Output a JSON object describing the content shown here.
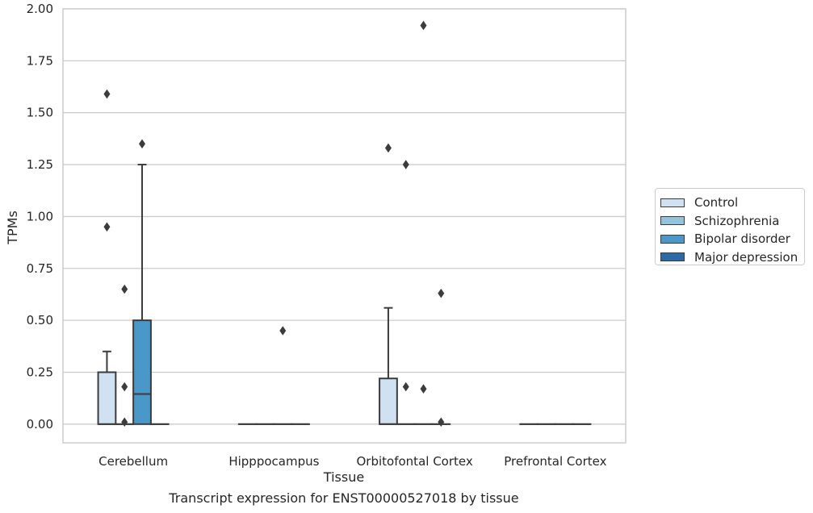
{
  "chart_data": {
    "type": "box",
    "title": "",
    "caption": "Transcript expression for ENST00000527018 by tissue",
    "xlabel": "Tissue",
    "ylabel": "TPMs",
    "ylim": [
      -0.09,
      2.0
    ],
    "yticks": [
      "0.00",
      "0.25",
      "0.50",
      "0.75",
      "1.00",
      "1.25",
      "1.50",
      "1.75",
      "2.00"
    ],
    "categories": [
      "Cerebellum",
      "Hipppocampus",
      "Orbitofontal Cortex",
      "Prefrontal Cortex"
    ],
    "grid": "horizontal",
    "legend_position": "right",
    "series": [
      {
        "name": "Control",
        "color": "#d0e1f2",
        "boxes": [
          {
            "q1": 0.0,
            "median": 0.0,
            "q3": 0.25,
            "whisker_low": 0.0,
            "whisker_high": 0.35,
            "outliers": [
              0.95,
              1.59
            ]
          },
          {
            "q1": 0.0,
            "median": 0.0,
            "q3": 0.0,
            "whisker_low": 0.0,
            "whisker_high": 0.0,
            "outliers": []
          },
          {
            "q1": 0.0,
            "median": 0.0,
            "q3": 0.22,
            "whisker_low": 0.0,
            "whisker_high": 0.56,
            "outliers": [
              1.33
            ]
          },
          {
            "q1": 0.0,
            "median": 0.0,
            "q3": 0.0,
            "whisker_low": 0.0,
            "whisker_high": 0.0,
            "outliers": []
          }
        ]
      },
      {
        "name": "Schizophrenia",
        "color": "#93c4de",
        "boxes": [
          {
            "q1": 0.0,
            "median": 0.0,
            "q3": 0.0,
            "whisker_low": 0.0,
            "whisker_high": 0.0,
            "outliers": [
              0.01,
              0.18,
              0.65
            ]
          },
          {
            "q1": 0.0,
            "median": 0.0,
            "q3": 0.0,
            "whisker_low": 0.0,
            "whisker_high": 0.0,
            "outliers": []
          },
          {
            "q1": 0.0,
            "median": 0.0,
            "q3": 0.0,
            "whisker_low": 0.0,
            "whisker_high": 0.0,
            "outliers": [
              0.18,
              1.25
            ]
          },
          {
            "q1": 0.0,
            "median": 0.0,
            "q3": 0.0,
            "whisker_low": 0.0,
            "whisker_high": 0.0,
            "outliers": []
          }
        ]
      },
      {
        "name": "Bipolar disorder",
        "color": "#4a98c9",
        "boxes": [
          {
            "q1": 0.0,
            "median": 0.145,
            "q3": 0.5,
            "whisker_low": 0.0,
            "whisker_high": 1.25,
            "outliers": [
              1.35
            ]
          },
          {
            "q1": 0.0,
            "median": 0.0,
            "q3": 0.0,
            "whisker_low": 0.0,
            "whisker_high": 0.0,
            "outliers": [
              0.45
            ]
          },
          {
            "q1": 0.0,
            "median": 0.0,
            "q3": 0.0,
            "whisker_low": 0.0,
            "whisker_high": 0.0,
            "outliers": [
              0.17,
              1.92
            ]
          },
          {
            "q1": 0.0,
            "median": 0.0,
            "q3": 0.0,
            "whisker_low": 0.0,
            "whisker_high": 0.0,
            "outliers": []
          }
        ]
      },
      {
        "name": "Major depression",
        "color": "#2a6aa6",
        "boxes": [
          {
            "q1": 0.0,
            "median": 0.0,
            "q3": 0.0,
            "whisker_low": 0.0,
            "whisker_high": 0.0,
            "outliers": []
          },
          {
            "q1": 0.0,
            "median": 0.0,
            "q3": 0.0,
            "whisker_low": 0.0,
            "whisker_high": 0.0,
            "outliers": []
          },
          {
            "q1": 0.0,
            "median": 0.0,
            "q3": 0.0,
            "whisker_low": 0.0,
            "whisker_high": 0.0,
            "outliers": [
              0.01,
              0.63
            ]
          },
          {
            "q1": 0.0,
            "median": 0.0,
            "q3": 0.0,
            "whisker_low": 0.0,
            "whisker_high": 0.0,
            "outliers": []
          }
        ]
      }
    ]
  }
}
